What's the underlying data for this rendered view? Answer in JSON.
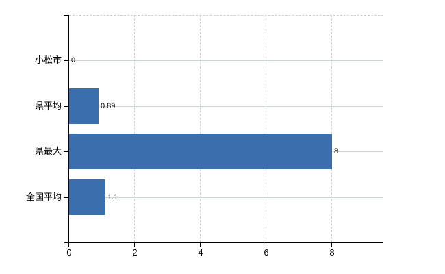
{
  "chart_data": {
    "type": "bar",
    "orientation": "horizontal",
    "title": "",
    "xlabel": "",
    "ylabel": "",
    "categories": [
      "小松市",
      "県平均",
      "県最大",
      "全国平均"
    ],
    "values": [
      0,
      0.89,
      8,
      1.1
    ],
    "value_labels": [
      "0",
      "0.89",
      "8",
      "1.1"
    ],
    "series": [
      {
        "name": "",
        "values": [
          0,
          0.89,
          8,
          1.1
        ]
      }
    ],
    "x_tick_labels": [
      "0",
      "2",
      "4",
      "6",
      "8"
    ],
    "x_tick_values": [
      0,
      2,
      4,
      6,
      8
    ],
    "xlim": [
      0,
      9.56
    ],
    "grid": true,
    "grid_style": {
      "vertical": "dashed",
      "horizontal": "solid"
    },
    "legend": false,
    "legend_position": "none",
    "colors": {
      "bar": "#3b6ead",
      "gridline": "#ccd6cc",
      "axis": "#000000",
      "text": "#000000"
    }
  }
}
